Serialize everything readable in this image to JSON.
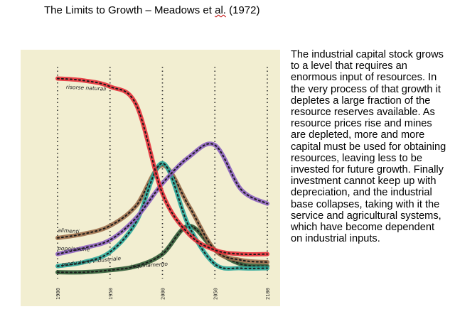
{
  "title": {
    "text_before": "The Limits to Growth – Meadows et ",
    "text_underlined": "al.",
    "text_after": " (1972)"
  },
  "caption": "The industrial capital stock grows to a level that requires an enormous input of resources. In the very process of that growth it depletes a large fraction of the resource reserves available. As resource prices rise and mines are depleted, more and more capital must be used for obtaining resources, leaving less to be invested for future growth. Finally investment cannot keep up with depreciation, and the industrial base collapses, taking with it the service and agricultural systems, which have become dependent on industrial inputs.",
  "chart_data": {
    "type": "line",
    "x": [
      1900,
      1925,
      1950,
      1975,
      2000,
      2025,
      2050,
      2075,
      2100
    ],
    "xlim": [
      1900,
      2100
    ],
    "x_tick_labels": [
      "1900",
      "1950",
      "2000",
      "2050",
      "2100"
    ],
    "ylim": [
      0,
      100
    ],
    "grid": true,
    "series": [
      {
        "name": "risorse naturali",
        "color": "#e8303a",
        "values": [
          97,
          96,
          93,
          84,
          40,
          20,
          12,
          10,
          10
        ]
      },
      {
        "name": "alimenti",
        "color": "#9a6d4a",
        "values": [
          18,
          20,
          24,
          34,
          54,
          34,
          12,
          7,
          6
        ]
      },
      {
        "name": "popolazione",
        "color": "#8c5fbf",
        "values": [
          10,
          13,
          17,
          28,
          45,
          58,
          64,
          42,
          35
        ]
      },
      {
        "name": "produzione industriale",
        "color": "#2aa79a",
        "values": [
          4,
          6,
          11,
          26,
          55,
          24,
          5,
          3,
          3
        ]
      },
      {
        "name": "inquinamento",
        "color": "#2f5a35",
        "values": [
          1,
          1,
          2,
          4,
          10,
          24,
          12,
          5,
          4
        ]
      }
    ]
  }
}
